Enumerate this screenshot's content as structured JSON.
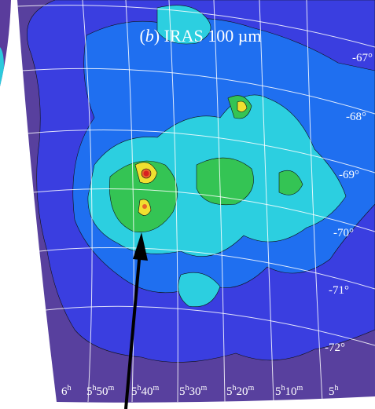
{
  "title_parts": [
    "(",
    "b",
    ") IRAS  100 µm"
  ],
  "dec_labels": [
    "-67°",
    "-68°",
    "-69°",
    "-70°",
    "-71°",
    "-72°"
  ],
  "ra_labels": [
    [
      "6",
      "h"
    ],
    [
      "5",
      "h",
      "50",
      "m"
    ],
    [
      "5",
      "h",
      "40",
      "m"
    ],
    [
      "5",
      "h",
      "30",
      "m"
    ],
    [
      "5",
      "h",
      "20",
      "m"
    ],
    [
      "5",
      "h",
      "10",
      "m"
    ],
    [
      "5",
      "h"
    ]
  ]
}
